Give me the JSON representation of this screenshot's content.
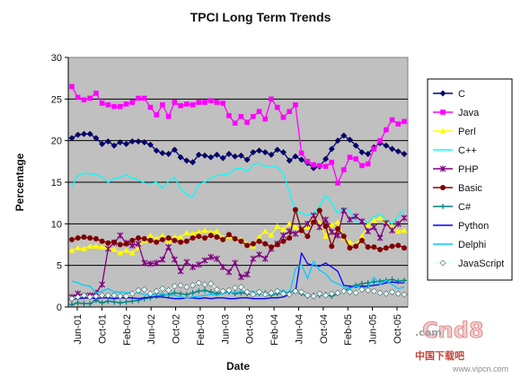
{
  "chart_data": {
    "type": "line",
    "title": "TPCI Long Term Trends",
    "xlabel": "Date",
    "ylabel": "Percentage",
    "ylim": [
      0,
      30
    ],
    "yticks": [
      0,
      5,
      10,
      15,
      20,
      25,
      30
    ],
    "xtick_labels": [
      "Jun-01",
      "Oct-01",
      "Feb-02",
      "Jun-02",
      "Oct-02",
      "Feb-03",
      "Jun-03",
      "Oct-03",
      "Feb-04",
      "Jun-04",
      "Oct-04",
      "Feb-05",
      "Jun-05",
      "Oct-05"
    ],
    "grid": "horizontal",
    "legend_position": "right",
    "plot_background": "#c0c0c0",
    "series": [
      {
        "name": "C",
        "color": "#000080",
        "marker": "diamond",
        "values": [
          20.3,
          20.7,
          20.8,
          20.8,
          20.3,
          19.6,
          19.9,
          19.4,
          19.8,
          19.6,
          19.9,
          19.9,
          19.8,
          19.5,
          18.8,
          18.5,
          18.4,
          18.9,
          18.0,
          17.6,
          17.4,
          18.3,
          18.2,
          18.0,
          18.3,
          17.9,
          18.4,
          18.1,
          18.2,
          17.7,
          18.6,
          18.8,
          18.6,
          18.3,
          18.9,
          18.6,
          17.6,
          18.1,
          17.7,
          17.3,
          16.7,
          16.9,
          17.8,
          19.0,
          20.0,
          20.6,
          20.1,
          19.4,
          18.6,
          18.4,
          19.2,
          19.7,
          19.4,
          19.0,
          18.7,
          18.4
        ]
      },
      {
        "name": "Java",
        "color": "#ff00ff",
        "marker": "square",
        "values": [
          26.5,
          25.2,
          24.9,
          25.1,
          25.7,
          24.5,
          24.3,
          24.1,
          24.1,
          24.4,
          24.6,
          25.1,
          25.1,
          24.0,
          23.1,
          24.3,
          22.9,
          24.6,
          24.2,
          24.4,
          24.3,
          24.6,
          24.6,
          24.8,
          24.6,
          24.5,
          23.0,
          22.1,
          22.9,
          22.2,
          22.9,
          23.5,
          22.6,
          25.0,
          24.0,
          22.8,
          23.5,
          24.3,
          18.5,
          17.5,
          17.1,
          17.0,
          16.9,
          17.4,
          14.9,
          16.5,
          18.0,
          17.8,
          17.0,
          17.2,
          19.0,
          20.0,
          21.3,
          22.5,
          22.0,
          22.3
        ]
      },
      {
        "name": "Perl",
        "color": "#ffff00",
        "marker": "triangle",
        "values": [
          6.8,
          7.1,
          7.0,
          7.3,
          7.3,
          7.2,
          7.1,
          6.9,
          6.5,
          6.8,
          6.5,
          7.1,
          8.0,
          8.6,
          8.2,
          8.6,
          7.9,
          8.4,
          8.4,
          8.9,
          8.8,
          9.0,
          9.2,
          9.0,
          9.1,
          8.3,
          8.5,
          8.2,
          8.1,
          7.6,
          7.3,
          8.4,
          9.1,
          8.6,
          9.7,
          9.3,
          10.0,
          9.6,
          9.2,
          9.6,
          10.7,
          10.1,
          8.5,
          9.9,
          10.2,
          8.3,
          7.8,
          7.5,
          8.5,
          9.8,
          10.4,
          10.7,
          10.3,
          9.6,
          9.1,
          9.2
        ]
      },
      {
        "name": "C++",
        "color": "#00ffff",
        "marker": "none",
        "values": [
          14.5,
          15.8,
          16.1,
          16.0,
          15.9,
          15.6,
          15.0,
          15.4,
          15.6,
          15.9,
          15.5,
          15.3,
          14.9,
          14.8,
          15.0,
          14.3,
          15.1,
          15.6,
          14.2,
          13.5,
          13.2,
          14.8,
          15.0,
          15.5,
          15.8,
          15.9,
          16.0,
          16.6,
          16.7,
          16.3,
          17.1,
          17.3,
          16.9,
          17.0,
          16.8,
          16.0,
          13.8,
          11.4,
          11.3,
          11.0,
          11.2,
          12.1,
          13.4,
          12.5,
          11.3,
          11.9,
          11.6,
          10.2,
          10.4,
          10.2,
          10.9,
          11.1,
          10.5,
          10.0,
          10.9,
          11.7
        ]
      },
      {
        "name": "PHP",
        "color": "#800080",
        "marker": "star",
        "values": [
          1.2,
          1.6,
          1.3,
          1.4,
          1.7,
          2.7,
          7.0,
          7.7,
          8.6,
          7.7,
          7.4,
          7.6,
          5.3,
          5.2,
          5.3,
          5.7,
          7.2,
          5.7,
          4.3,
          5.4,
          4.8,
          5.1,
          5.6,
          6.0,
          5.8,
          4.8,
          4.2,
          5.3,
          3.6,
          3.9,
          5.8,
          6.3,
          5.8,
          7.0,
          7.6,
          8.6,
          9.1,
          8.8,
          9.3,
          10.0,
          11.0,
          9.6,
          10.5,
          9.0,
          8.6,
          11.6,
          10.5,
          10.9,
          10.3,
          9.1,
          9.6,
          8.3,
          10.1,
          9.2,
          10.0,
          10.7
        ]
      },
      {
        "name": "Basic",
        "color": "#800000",
        "marker": "circle",
        "values": [
          8.1,
          8.3,
          8.4,
          8.3,
          8.2,
          7.9,
          7.7,
          7.8,
          7.5,
          7.6,
          8.0,
          8.3,
          8.2,
          8.0,
          7.8,
          8.1,
          8.3,
          8.0,
          7.8,
          7.9,
          8.3,
          8.5,
          8.3,
          8.6,
          8.4,
          8.1,
          8.7,
          8.2,
          7.9,
          7.4,
          7.6,
          7.9,
          7.6,
          7.2,
          7.5,
          7.9,
          8.3,
          11.7,
          9.2,
          8.5,
          10.2,
          11.6,
          9.7,
          7.3,
          9.4,
          8.5,
          7.1,
          7.3,
          8.0,
          7.2,
          7.2,
          6.9,
          7.1,
          7.3,
          7.4,
          7.1
        ]
      },
      {
        "name": "C#",
        "color": "#008080",
        "marker": "plus",
        "values": [
          0.3,
          0.5,
          0.4,
          0.4,
          0.8,
          0.5,
          0.7,
          0.6,
          0.5,
          0.6,
          0.7,
          0.8,
          1.0,
          1.1,
          1.3,
          1.4,
          1.5,
          1.7,
          1.6,
          1.5,
          1.7,
          1.9,
          2.0,
          1.8,
          1.6,
          1.9,
          1.8,
          1.6,
          1.7,
          1.6,
          1.5,
          1.6,
          1.7,
          1.4,
          1.6,
          1.8,
          1.7,
          2.0,
          1.6,
          1.3,
          1.4,
          1.4,
          1.5,
          1.3,
          1.6,
          1.9,
          2.3,
          2.6,
          2.8,
          2.9,
          3.0,
          3.1,
          3.2,
          3.3,
          3.1,
          3.2
        ]
      },
      {
        "name": "Python",
        "color": "#0000ff",
        "marker": "none",
        "values": [
          1.0,
          1.0,
          1.1,
          1.1,
          1.0,
          1.1,
          1.1,
          1.0,
          1.1,
          1.1,
          1.1,
          1.0,
          1.1,
          1.2,
          1.2,
          1.2,
          1.1,
          1.0,
          1.0,
          1.1,
          1.1,
          1.0,
          1.1,
          1.0,
          1.1,
          1.1,
          1.0,
          1.0,
          1.1,
          1.1,
          1.0,
          1.0,
          1.0,
          1.1,
          1.1,
          1.2,
          1.5,
          1.8,
          6.5,
          5.2,
          5.0,
          4.9,
          5.3,
          4.8,
          4.3,
          2.6,
          2.5,
          2.4,
          2.5,
          2.5,
          2.6,
          2.7,
          2.9,
          3.0,
          2.9,
          2.9
        ]
      },
      {
        "name": "Delphi",
        "color": "#00ccff",
        "marker": "none",
        "values": [
          3.1,
          2.9,
          2.6,
          2.5,
          1.7,
          1.9,
          2.2,
          1.8,
          1.8,
          1.7,
          1.7,
          1.7,
          1.5,
          1.4,
          1.6,
          1.6,
          1.4,
          1.4,
          1.2,
          1.1,
          1.2,
          1.3,
          1.4,
          1.5,
          1.4,
          1.6,
          1.8,
          1.7,
          1.9,
          1.8,
          1.9,
          1.5,
          1.7,
          1.4,
          1.8,
          2.0,
          1.5,
          4.6,
          5.1,
          3.4,
          5.5,
          4.4,
          4.0,
          3.1,
          2.8,
          2.4,
          2.2,
          2.5,
          2.3,
          2.4,
          3.6,
          2.7,
          3.2,
          2.7,
          2.2,
          2.4
        ]
      },
      {
        "name": "JavaScript",
        "color": "#e0ffff",
        "marker": "diamond",
        "values": [
          1.0,
          1.2,
          1.4,
          1.2,
          1.3,
          1.4,
          1.4,
          1.4,
          1.3,
          1.3,
          1.6,
          2.0,
          2.1,
          1.6,
          1.9,
          2.2,
          2.0,
          2.5,
          2.6,
          2.4,
          2.6,
          2.9,
          2.7,
          2.8,
          2.1,
          1.9,
          2.0,
          2.3,
          2.4,
          1.8,
          1.5,
          1.8,
          1.5,
          1.7,
          1.9,
          1.6,
          1.5,
          1.9,
          1.8,
          1.4,
          1.3,
          1.6,
          1.4,
          1.6,
          1.7,
          1.9,
          1.8,
          1.7,
          2.1,
          2.0,
          1.9,
          1.7,
          1.6,
          1.8,
          1.6,
          1.5
        ]
      }
    ]
  },
  "watermark": {
    "brand": "Cnd8",
    "small": ".com",
    "cn_text": "中国下载吧",
    "url": "www.vipcn.com"
  }
}
